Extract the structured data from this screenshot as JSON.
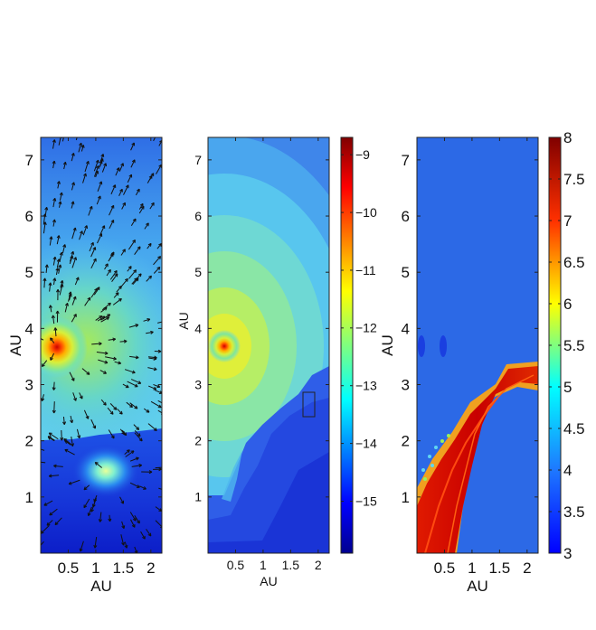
{
  "chart_data": [
    {
      "type": "heatmap",
      "panel": "left",
      "xlabel": "AU",
      "ylabel": "AU",
      "xlim": [
        0,
        2.2
      ],
      "ylim": [
        0,
        7.4
      ],
      "xticks": [
        "0.5",
        "1",
        "1.5",
        "2"
      ],
      "yticks": [
        "1",
        "2",
        "3",
        "4",
        "5",
        "6",
        "7"
      ],
      "colorbar": false,
      "overlay": "velocity-arrows",
      "features": {
        "hot_spot": {
          "x": 0.3,
          "y": 3.75
        },
        "bright_spot": {
          "x": 1.15,
          "y": 1.5
        },
        "front_boundary_y": 1.95
      }
    },
    {
      "type": "heatmap",
      "panel": "middle",
      "xlabel": "AU",
      "ylabel": "AU",
      "xlim": [
        0,
        2.2
      ],
      "ylim": [
        0,
        7.4
      ],
      "xticks": [
        "0.5",
        "1",
        "1.5",
        "2"
      ],
      "yticks": [
        "1",
        "2",
        "3",
        "4",
        "5",
        "6",
        "7"
      ],
      "colorbar": true,
      "colorbar_range": [
        -15.9,
        -8.7
      ],
      "colorbar_ticks": [
        "-9",
        "-10",
        "-11",
        "-12",
        "-13",
        "-14",
        "-15"
      ],
      "features": {
        "hot_spot": {
          "x": 0.3,
          "y": 3.75
        },
        "marked_box": {
          "x": [
            1.67,
            1.85
          ],
          "y": [
            2.55,
            2.95
          ]
        }
      }
    },
    {
      "type": "heatmap",
      "panel": "right",
      "xlabel": "AU",
      "ylabel": "AU",
      "xlim": [
        0,
        2.2
      ],
      "ylim": [
        0,
        7.4
      ],
      "xticks": [
        "0.5",
        "1",
        "1.5",
        "2"
      ],
      "yticks": [
        "1",
        "2",
        "3",
        "4",
        "5",
        "6",
        "7"
      ],
      "colorbar": true,
      "colorbar_range": [
        3,
        8
      ],
      "colorbar_ticks": [
        "8",
        "7.5",
        "7",
        "6.5",
        "6",
        "5.5",
        "5",
        "4.5",
        "4",
        "3.5",
        "3"
      ],
      "background_value": 4,
      "features": {
        "high_band": "diagonal band from (0.1, 0.0) to (2.2, 3.3)",
        "band_value": 7.8
      }
    }
  ],
  "colors": {
    "jet_dark_blue": "#0000a0",
    "jet_blue": "#2b5ee8",
    "jet_cyan": "#5fd6f2",
    "jet_green": "#9af05a",
    "jet_yellow": "#f2e72a",
    "jet_orange": "#ff8c00",
    "jet_red": "#d50000",
    "background_panel3": "#2c69e6"
  }
}
